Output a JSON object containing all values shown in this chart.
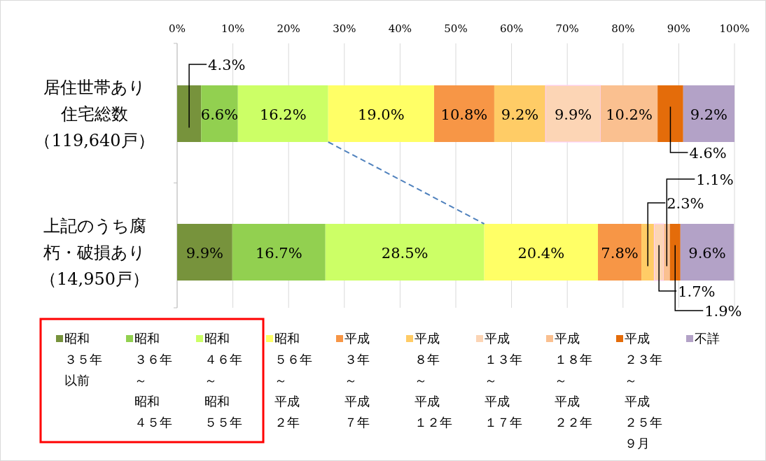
{
  "chart_data": {
    "type": "bar",
    "orientation": "horizontal",
    "stacked": true,
    "grid": "x",
    "legend": "bottom",
    "categories": [
      "居住世帯あり住宅総数（119,640戸）",
      "上記のうち腐朽・破損あり（14,950戸）"
    ],
    "xlim": [
      0,
      100
    ],
    "xticks": [
      {
        "value": 0,
        "label": "0%"
      },
      {
        "value": 10,
        "label": "10%"
      },
      {
        "value": 20,
        "label": "20%"
      },
      {
        "value": 30,
        "label": "30%"
      },
      {
        "value": 40,
        "label": "40%"
      },
      {
        "value": 50,
        "label": "50%"
      },
      {
        "value": 60,
        "label": "60%"
      },
      {
        "value": 70,
        "label": "70%"
      },
      {
        "value": 80,
        "label": "80%"
      },
      {
        "value": 90,
        "label": "90%"
      },
      {
        "value": 100,
        "label": "100%"
      }
    ],
    "series": [
      {
        "name": "昭和３５年以前",
        "color": "#77933c",
        "values": [
          4.3,
          9.9
        ],
        "value_labels": [
          "4.3%",
          "9.9%"
        ]
      },
      {
        "name": "昭和３６年～昭和４５年",
        "color": "#92d050",
        "values": [
          6.6,
          16.7
        ],
        "value_labels": [
          "6.6%",
          "16.7%"
        ]
      },
      {
        "name": "昭和４６年～昭和５５年",
        "color": "#ccff66",
        "values": [
          16.2,
          28.5
        ],
        "value_labels": [
          "16.2%",
          "28.5%"
        ]
      },
      {
        "name": "昭和５６年～平成２年",
        "color": "#ffff66",
        "values": [
          19.0,
          20.4
        ],
        "value_labels": [
          "19.0%",
          "20.4%"
        ]
      },
      {
        "name": "平成３年～平成７年",
        "color": "#f79646",
        "values": [
          10.8,
          7.8
        ],
        "value_labels": [
          "10.8%",
          "7.8%"
        ]
      },
      {
        "name": "平成８年～平成１２年",
        "color": "#ffcc66",
        "values": [
          9.2,
          2.3
        ],
        "value_labels": [
          "9.2%",
          "2.3%"
        ]
      },
      {
        "name": "平成１３年～平成１７年",
        "color": "#fcd5b5",
        "values": [
          9.9,
          1.7
        ],
        "value_labels": [
          "9.9%",
          "1.7%"
        ]
      },
      {
        "name": "平成１８年～平成２２年",
        "color": "#fac090",
        "values": [
          10.2,
          1.1
        ],
        "value_labels": [
          "10.2%",
          "1.1%"
        ]
      },
      {
        "name": "平成２３年～平成２５年９月",
        "color": "#e46c0a",
        "values": [
          4.6,
          1.9
        ],
        "value_labels": [
          "4.6%",
          "1.9%"
        ]
      },
      {
        "name": "不詳",
        "color": "#b3a2c7",
        "values": [
          9.2,
          9.6
        ],
        "value_labels": [
          "9.2%",
          "9.6%"
        ]
      }
    ]
  }
}
